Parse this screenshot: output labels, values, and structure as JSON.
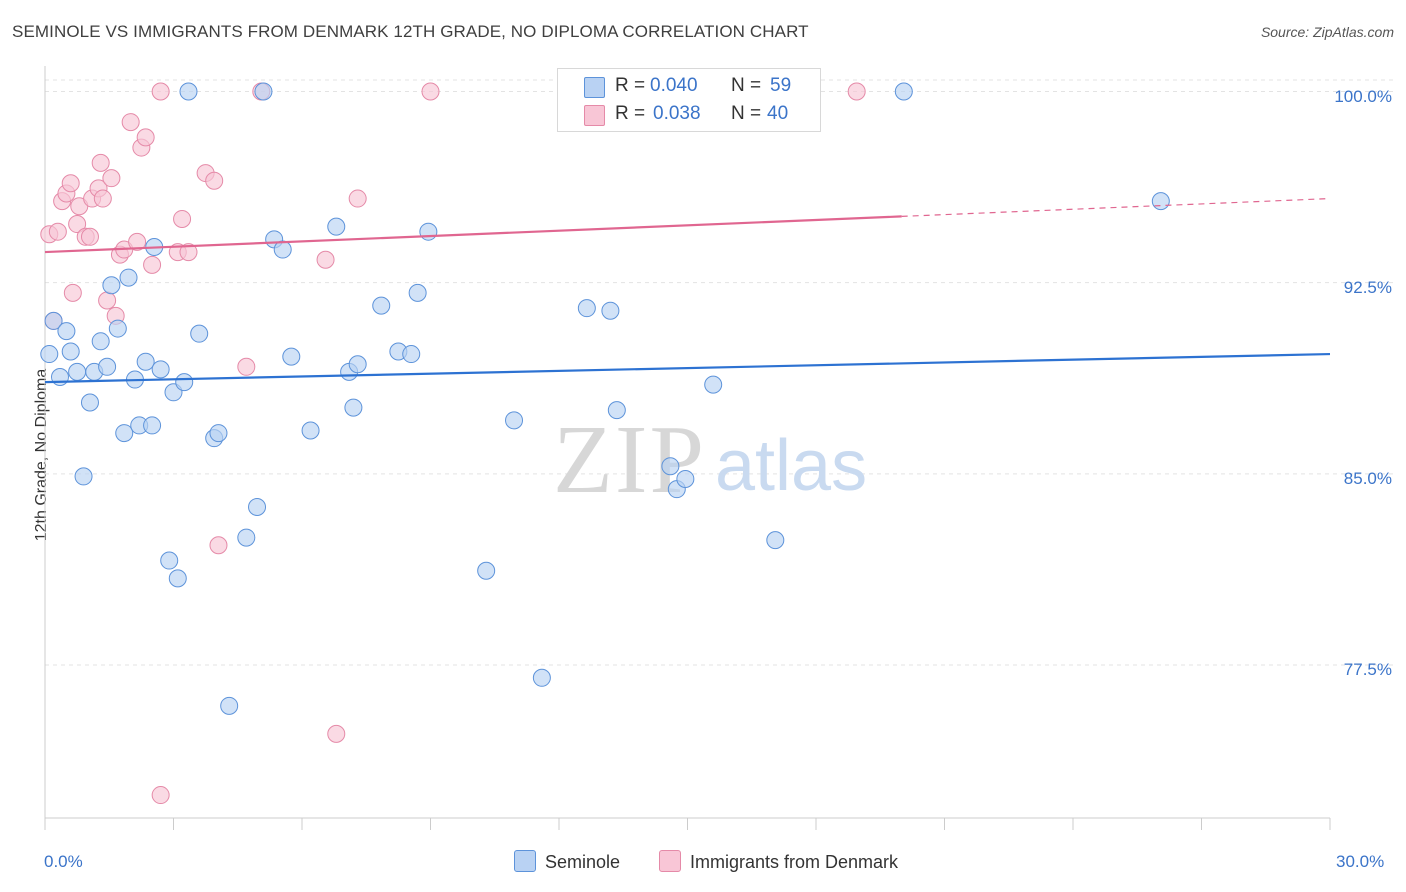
{
  "title": "SEMINOLE VS IMMIGRANTS FROM DENMARK 12TH GRADE, NO DIPLOMA CORRELATION CHART",
  "source": "Source: ZipAtlas.com",
  "watermark": {
    "zip": "ZIP",
    "atlas": "atlas"
  },
  "legend_top": {
    "rows": [
      {
        "r_label": "R =",
        "r_value": "0.040",
        "n_label": "N =",
        "n_value": "59"
      },
      {
        "r_label": "R =",
        "r_value": "0.038",
        "n_label": "N =",
        "n_value": "40"
      }
    ]
  },
  "legend_bottom": [
    "Seminole",
    "Immigrants from Denmark"
  ],
  "colors": {
    "seminole_fill": "#b9d2f3",
    "seminole_stroke": "#5d93da",
    "seminole_line": "#2d72d2",
    "denmark_fill": "#f8c6d6",
    "denmark_stroke": "#e58aa8",
    "denmark_line": "#e06690",
    "accent_text": "#3b74c9",
    "grid": "#e3e3e3"
  },
  "chart_data": {
    "type": "scatter",
    "title": "SEMINOLE VS IMMIGRANTS FROM DENMARK 12TH GRADE, NO DIPLOMA CORRELATION CHART",
    "xlabel": "",
    "ylabel": "12th Grade, No Diploma",
    "xlim": [
      0,
      30
    ],
    "ylim": [
      71.5,
      101
    ],
    "x_tick_labels": [
      "0.0%",
      "30.0%"
    ],
    "y_ticks": [
      77.5,
      85.0,
      92.5,
      100.0
    ],
    "y_tick_labels": [
      "77.5%",
      "85.0%",
      "92.5%",
      "100.0%"
    ],
    "series": [
      {
        "name": "Seminole",
        "r": 0.04,
        "n": 59,
        "trend": {
          "x0": 0,
          "y0": 88.6,
          "x1": 30,
          "y1": 89.7
        },
        "points": [
          [
            0.1,
            89.7
          ],
          [
            0.2,
            91.0
          ],
          [
            0.35,
            88.8
          ],
          [
            0.5,
            90.6
          ],
          [
            0.6,
            89.8
          ],
          [
            0.75,
            89.0
          ],
          [
            0.9,
            84.9
          ],
          [
            1.05,
            87.8
          ],
          [
            1.15,
            89.0
          ],
          [
            1.3,
            90.2
          ],
          [
            1.45,
            89.2
          ],
          [
            1.55,
            92.4
          ],
          [
            1.7,
            90.7
          ],
          [
            1.85,
            86.6
          ],
          [
            1.95,
            92.7
          ],
          [
            2.1,
            88.7
          ],
          [
            2.2,
            86.9
          ],
          [
            2.35,
            89.4
          ],
          [
            2.5,
            86.9
          ],
          [
            2.55,
            93.9
          ],
          [
            2.7,
            89.1
          ],
          [
            2.9,
            81.6
          ],
          [
            3.0,
            88.2
          ],
          [
            3.1,
            80.9
          ],
          [
            3.25,
            88.6
          ],
          [
            3.35,
            100.0
          ],
          [
            3.6,
            90.5
          ],
          [
            3.95,
            86.4
          ],
          [
            4.05,
            86.6
          ],
          [
            4.3,
            75.9
          ],
          [
            4.7,
            82.5
          ],
          [
            4.95,
            83.7
          ],
          [
            5.1,
            100.0
          ],
          [
            5.35,
            94.2
          ],
          [
            5.55,
            93.8
          ],
          [
            5.75,
            89.6
          ],
          [
            6.2,
            86.7
          ],
          [
            6.8,
            94.7
          ],
          [
            7.1,
            89.0
          ],
          [
            7.2,
            87.6
          ],
          [
            7.3,
            89.3
          ],
          [
            7.85,
            91.6
          ],
          [
            8.25,
            89.8
          ],
          [
            8.55,
            89.7
          ],
          [
            8.7,
            92.1
          ],
          [
            8.95,
            94.5
          ],
          [
            10.3,
            81.2
          ],
          [
            10.95,
            87.1
          ],
          [
            11.6,
            77.0
          ],
          [
            12.65,
            91.5
          ],
          [
            13.2,
            91.4
          ],
          [
            13.35,
            87.5
          ],
          [
            14.6,
            85.3
          ],
          [
            14.75,
            84.4
          ],
          [
            14.95,
            84.8
          ],
          [
            15.6,
            88.5
          ],
          [
            17.05,
            82.4
          ],
          [
            20.05,
            100.0
          ],
          [
            26.05,
            95.7
          ]
        ]
      },
      {
        "name": "Immigrants from Denmark",
        "r": 0.038,
        "n": 40,
        "trend": {
          "x0": 0,
          "y0": 93.7,
          "x1": 20.0,
          "y1": 95.1,
          "dash_to_x": 30,
          "dash_to_y": 95.8
        },
        "points": [
          [
            0.1,
            94.4
          ],
          [
            0.2,
            91.0
          ],
          [
            0.3,
            94.5
          ],
          [
            0.4,
            95.7
          ],
          [
            0.5,
            96.0
          ],
          [
            0.6,
            96.4
          ],
          [
            0.65,
            92.1
          ],
          [
            0.75,
            94.8
          ],
          [
            0.8,
            95.5
          ],
          [
            0.95,
            94.3
          ],
          [
            1.05,
            94.3
          ],
          [
            1.1,
            95.8
          ],
          [
            1.25,
            96.2
          ],
          [
            1.3,
            97.2
          ],
          [
            1.35,
            95.8
          ],
          [
            1.45,
            91.8
          ],
          [
            1.55,
            96.6
          ],
          [
            1.65,
            91.2
          ],
          [
            1.75,
            93.6
          ],
          [
            1.85,
            93.8
          ],
          [
            2.0,
            98.8
          ],
          [
            2.15,
            94.1
          ],
          [
            2.25,
            97.8
          ],
          [
            2.35,
            98.2
          ],
          [
            2.5,
            93.2
          ],
          [
            2.7,
            72.4
          ],
          [
            2.7,
            100.0
          ],
          [
            3.1,
            93.7
          ],
          [
            3.2,
            95.0
          ],
          [
            3.35,
            93.7
          ],
          [
            3.75,
            96.8
          ],
          [
            3.95,
            96.5
          ],
          [
            4.05,
            82.2
          ],
          [
            4.7,
            89.2
          ],
          [
            5.05,
            100.0
          ],
          [
            6.55,
            93.4
          ],
          [
            6.8,
            74.8
          ],
          [
            7.3,
            95.8
          ],
          [
            9.0,
            100.0
          ],
          [
            18.95,
            100.0
          ]
        ]
      }
    ]
  }
}
